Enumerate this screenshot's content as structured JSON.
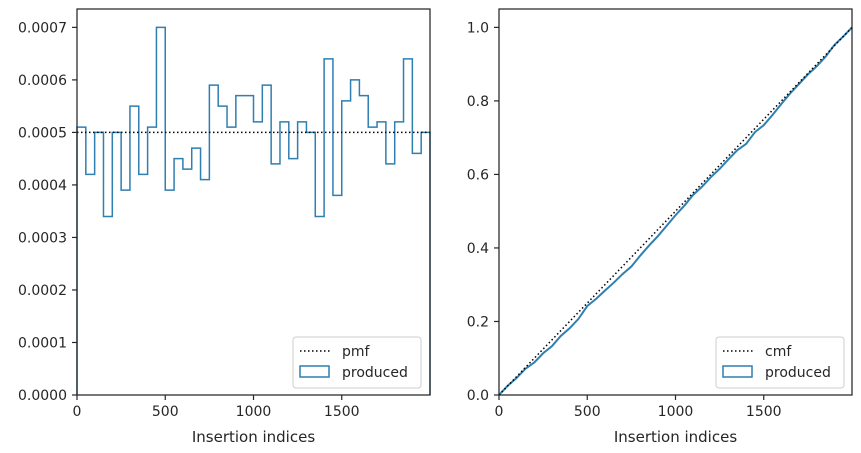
{
  "colors": {
    "produced": "#2f7fb0",
    "reference": "#000000",
    "axis": "#262626"
  },
  "chart_data": [
    {
      "type": "step",
      "xlabel": "Insertion indices",
      "ylabel": "",
      "xlim": [
        0,
        2000
      ],
      "ylim": [
        0,
        0.000735
      ],
      "xticks": [
        0,
        500,
        1000,
        1500
      ],
      "xtick_labels": [
        "0",
        "500",
        "1000",
        "1500"
      ],
      "yticks": [
        0,
        0.0001,
        0.0002,
        0.0003,
        0.0004,
        0.0005,
        0.0006,
        0.0007
      ],
      "ytick_labels": [
        "0.0000",
        "0.0001",
        "0.0002",
        "0.0003",
        "0.0004",
        "0.0005",
        "0.0006",
        "0.0007"
      ],
      "legend_position": "bottom-right",
      "reference": {
        "name": "pmf",
        "style": "dotted",
        "value": 0.0005
      },
      "produced": {
        "name": "produced",
        "bin_width": 50,
        "values": [
          0.00051,
          0.00042,
          0.0005,
          0.00034,
          0.0005,
          0.00039,
          0.00055,
          0.00042,
          0.00051,
          0.0007,
          0.00039,
          0.00045,
          0.00043,
          0.00047,
          0.00041,
          0.00059,
          0.00055,
          0.00051,
          0.00057,
          0.00057,
          0.00052,
          0.00059,
          0.00044,
          0.00052,
          0.00045,
          0.00052,
          0.0005,
          0.00034,
          0.00064,
          0.00038,
          0.00056,
          0.0006,
          0.00057,
          0.00051,
          0.00052,
          0.00044,
          0.00052,
          0.00064,
          0.00046,
          0.0005
        ]
      }
    },
    {
      "type": "line",
      "xlabel": "Insertion indices",
      "ylabel": "",
      "xlim": [
        0,
        2000
      ],
      "ylim": [
        0,
        1.05
      ],
      "xticks": [
        0,
        500,
        1000,
        1500
      ],
      "xtick_labels": [
        "0",
        "500",
        "1000",
        "1500"
      ],
      "yticks": [
        0,
        0.2,
        0.4,
        0.6,
        0.8,
        1.0
      ],
      "ytick_labels": [
        "0.0",
        "0.2",
        "0.4",
        "0.6",
        "0.8",
        "1.0"
      ],
      "legend_position": "bottom-right",
      "reference": {
        "name": "cmf",
        "style": "dotted",
        "x": [
          0,
          2000
        ],
        "y": [
          0,
          1.0
        ]
      },
      "produced": {
        "name": "produced",
        "x": [
          0,
          50,
          100,
          150,
          200,
          250,
          300,
          350,
          400,
          450,
          500,
          550,
          600,
          650,
          700,
          750,
          800,
          850,
          900,
          950,
          1000,
          1050,
          1100,
          1150,
          1200,
          1250,
          1300,
          1350,
          1400,
          1450,
          1500,
          1550,
          1600,
          1650,
          1700,
          1750,
          1800,
          1850,
          1900,
          1950,
          2000
        ],
        "y": [
          0,
          0.0255,
          0.0465,
          0.0715,
          0.0885,
          0.1135,
          0.133,
          0.1605,
          0.1815,
          0.207,
          0.242,
          0.2615,
          0.284,
          0.3055,
          0.329,
          0.3495,
          0.379,
          0.4065,
          0.432,
          0.4605,
          0.489,
          0.515,
          0.5445,
          0.5665,
          0.5925,
          0.615,
          0.641,
          0.666,
          0.683,
          0.715,
          0.734,
          0.762,
          0.792,
          0.8205,
          0.846,
          0.872,
          0.894,
          0.92,
          0.952,
          0.975,
          1.0
        ]
      }
    }
  ]
}
